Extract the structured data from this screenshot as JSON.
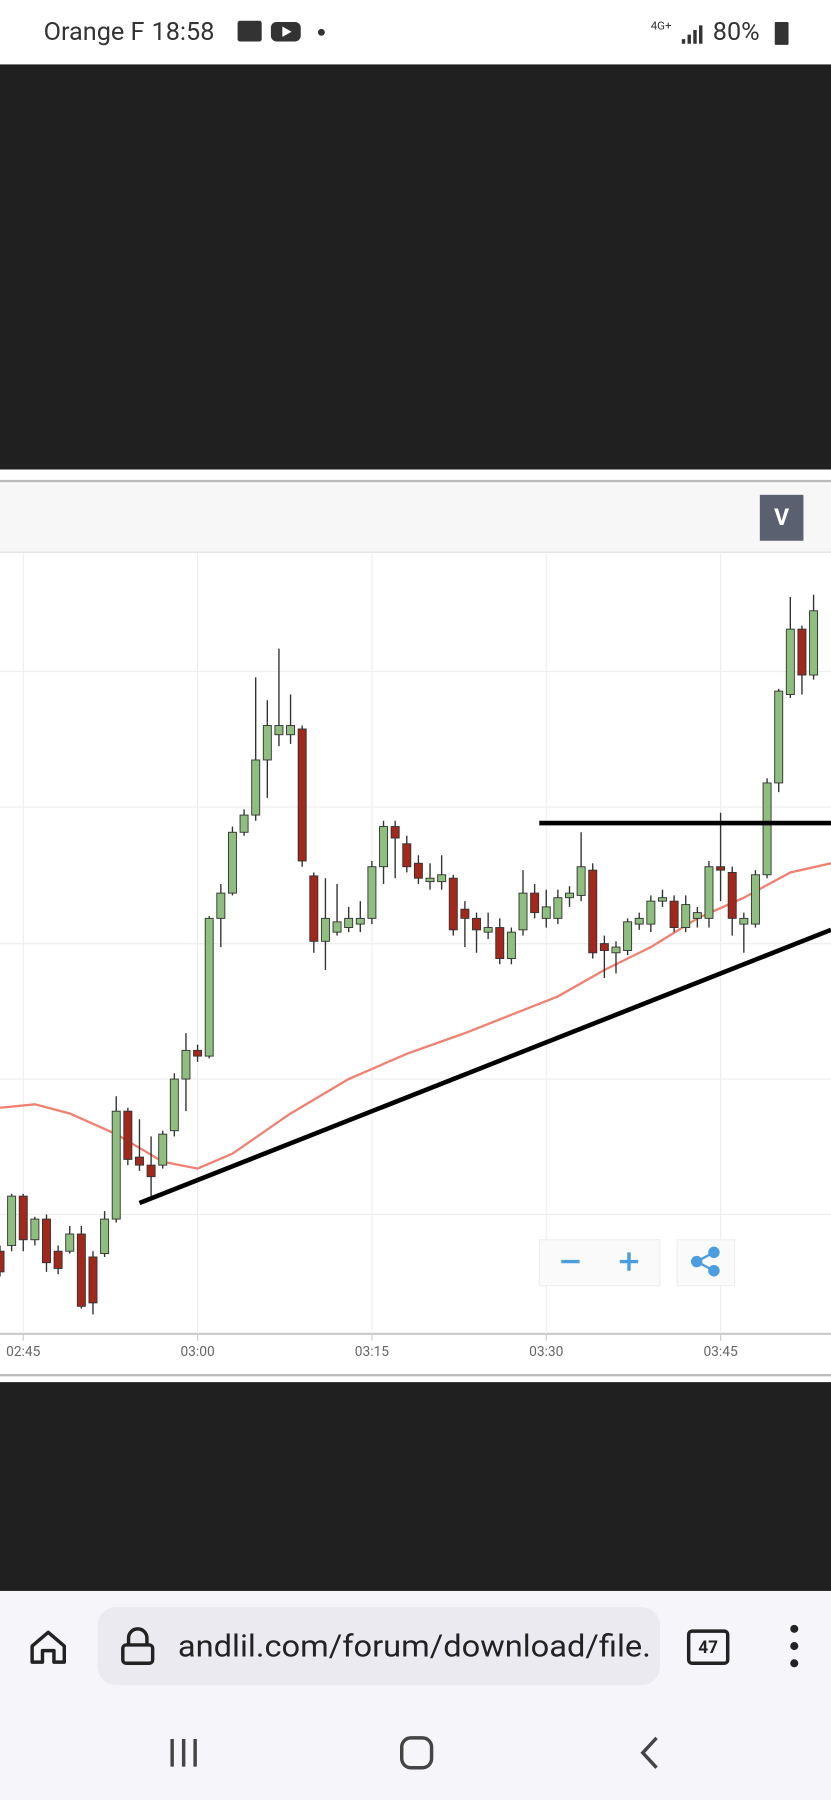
{
  "status_bar": {
    "carrier": "Orange F",
    "time": "18:58",
    "network": "4G+",
    "battery": "80%"
  },
  "chart_toolbar": {
    "button": "V"
  },
  "chart_data": {
    "type": "candlestick",
    "up_color": "#8fbf7f",
    "down_color": "#a3281c",
    "xlim": [
      0,
      71.5
    ],
    "ylim": [
      0,
      680
    ],
    "xticks": [
      {
        "value": 2,
        "label": "02:45"
      },
      {
        "value": 17,
        "label": "03:00"
      },
      {
        "value": 32,
        "label": "03:15"
      },
      {
        "value": 47,
        "label": "03:30"
      },
      {
        "value": 62,
        "label": "03:45"
      }
    ],
    "grid": true,
    "open": [
      70,
      75,
      118,
      80,
      98,
      70,
      70,
      85,
      65,
      68,
      98,
      192,
      152,
      145,
      145,
      175,
      220,
      245,
      240,
      360,
      382,
      435,
      450,
      498,
      520,
      520,
      525,
      397,
      340,
      348,
      352,
      355,
      360,
      405,
      440,
      425,
      408,
      392,
      392,
      395,
      368,
      360,
      348,
      352,
      325,
      350,
      382,
      360,
      360,
      378,
      380,
      402,
      338,
      330,
      332,
      355,
      355,
      375,
      375,
      352,
      360,
      360,
      405,
      400,
      355,
      355,
      398,
      478,
      555,
      612,
      572
    ],
    "high": [
      75,
      120,
      120,
      100,
      102,
      75,
      92,
      92,
      70,
      105,
      205,
      195,
      185,
      170,
      175,
      225,
      260,
      250,
      362,
      390,
      440,
      455,
      570,
      550,
      595,
      555,
      528,
      400,
      395,
      390,
      370,
      375,
      410,
      445,
      445,
      432,
      415,
      408,
      415,
      398,
      375,
      365,
      365,
      360,
      352,
      402,
      390,
      385,
      385,
      388,
      435,
      408,
      345,
      340,
      360,
      365,
      380,
      385,
      380,
      380,
      370,
      410,
      452,
      405,
      365,
      402,
      482,
      560,
      640,
      615,
      642
    ],
    "low": [
      48,
      70,
      70,
      75,
      52,
      50,
      68,
      20,
      15,
      65,
      95,
      145,
      140,
      115,
      142,
      170,
      192,
      235,
      238,
      335,
      380,
      432,
      445,
      465,
      510,
      512,
      405,
      330,
      315,
      345,
      348,
      348,
      355,
      390,
      395,
      400,
      390,
      385,
      385,
      345,
      335,
      330,
      342,
      320,
      320,
      345,
      360,
      352,
      355,
      370,
      375,
      325,
      308,
      312,
      328,
      350,
      348,
      370,
      348,
      348,
      352,
      352,
      375,
      345,
      330,
      352,
      395,
      470,
      552,
      555,
      568
    ],
    "close": [
      52,
      118,
      80,
      98,
      60,
      55,
      85,
      22,
      25,
      98,
      192,
      150,
      145,
      135,
      172,
      220,
      245,
      240,
      360,
      382,
      435,
      450,
      498,
      528,
      528,
      528,
      410,
      340,
      360,
      357,
      360,
      360,
      405,
      440,
      430,
      405,
      395,
      395,
      398,
      350,
      360,
      350,
      352,
      325,
      348,
      382,
      365,
      370,
      378,
      382,
      405,
      330,
      332,
      335,
      357,
      360,
      375,
      378,
      352,
      372,
      365,
      405,
      402,
      360,
      360,
      398,
      478,
      558,
      612,
      572,
      628
    ],
    "moving_average": {
      "color": "#f08070",
      "x": [
        0,
        3,
        6,
        10,
        14,
        17,
        20,
        25,
        30,
        35,
        40,
        45,
        48,
        52,
        56,
        60,
        64,
        68,
        71.5
      ],
      "values": [
        195,
        198,
        190,
        172,
        148,
        142,
        155,
        190,
        220,
        242,
        260,
        280,
        292,
        315,
        335,
        360,
        378,
        400,
        408
      ]
    },
    "lines": [
      {
        "color": "#000000",
        "x": [
          12,
          71.5
        ],
        "values": [
          112,
          350
        ]
      },
      {
        "color": "#000000",
        "x": [
          46.4,
          71.5
        ],
        "values": [
          443,
          443
        ]
      }
    ]
  },
  "browser": {
    "url": "andlil.com/forum/download/file.",
    "tabs": 47
  }
}
